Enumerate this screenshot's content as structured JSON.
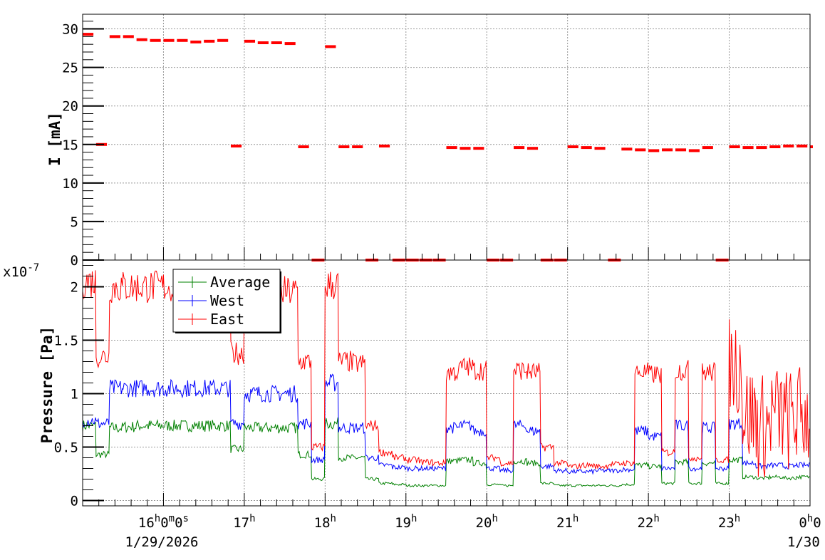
{
  "chart_data": [
    {
      "type": "scatter",
      "ylabel": "I [mA]",
      "ylim": [
        0,
        31.9
      ],
      "xlim": [
        "15:00",
        "24:00"
      ],
      "grid": true,
      "yticks": [
        "0",
        "5",
        "10",
        "15",
        "20",
        "25",
        "30"
      ],
      "color": "#ff0000",
      "x": [
        "15:00",
        "15:10",
        "15:20",
        "15:30",
        "15:40",
        "15:50",
        "16:00",
        "16:10",
        "16:20",
        "16:30",
        "16:40",
        "16:50",
        "17:00",
        "17:10",
        "17:20",
        "17:30",
        "17:40",
        "17:50",
        "18:00",
        "18:10",
        "18:20",
        "18:30",
        "18:40",
        "18:50",
        "19:00",
        "19:10",
        "19:20",
        "19:30",
        "19:40",
        "19:50",
        "20:00",
        "20:10",
        "20:20",
        "20:30",
        "20:40",
        "20:50",
        "21:00",
        "21:10",
        "21:20",
        "21:30",
        "21:40",
        "21:50",
        "22:00",
        "22:10",
        "22:20",
        "22:30",
        "22:40",
        "22:50",
        "23:00",
        "23:10",
        "23:20",
        "23:30",
        "23:40",
        "23:50",
        "24:00"
      ],
      "values": [
        29.3,
        15.0,
        29.0,
        29.0,
        28.6,
        28.5,
        28.5,
        28.5,
        28.3,
        28.4,
        28.5,
        14.8,
        28.4,
        28.2,
        28.2,
        28.1,
        14.7,
        0,
        27.7,
        14.7,
        14.7,
        0,
        14.8,
        0,
        0,
        0,
        0,
        14.6,
        14.5,
        14.5,
        0,
        0,
        14.6,
        14.5,
        0,
        0,
        14.7,
        14.6,
        14.5,
        0,
        14.4,
        14.3,
        14.2,
        14.3,
        14.3,
        14.2,
        14.6,
        0,
        14.7,
        14.6,
        14.6,
        14.7,
        14.8,
        14.8,
        14.7
      ]
    },
    {
      "type": "line",
      "ylabel": "Pressure [Pa]",
      "yexponent": "x10",
      "yexponent_power": "-7",
      "ylim": [
        -0.05,
        2.25
      ],
      "xlim": [
        "15:00",
        "24:00"
      ],
      "grid": true,
      "legend": "top-left",
      "yticks": [
        "0",
        "0.5",
        "1",
        "1.5",
        "2"
      ],
      "xticks": [
        {
          "main": "16",
          "sup1": "h",
          "mid": "0",
          "sup2": "m",
          "end": "0",
          "sup3": "s",
          "time": "16:00"
        },
        {
          "main": "17",
          "sup1": "h",
          "time": "17:00"
        },
        {
          "main": "18",
          "sup1": "h",
          "time": "18:00"
        },
        {
          "main": "19",
          "sup1": "h",
          "time": "19:00"
        },
        {
          "main": "20",
          "sup1": "h",
          "time": "20:00"
        },
        {
          "main": "21",
          "sup1": "h",
          "time": "21:00"
        },
        {
          "main": "22",
          "sup1": "h",
          "time": "22:00"
        },
        {
          "main": "23",
          "sup1": "h",
          "time": "23:00"
        },
        {
          "main": "0",
          "sup1": "h",
          "mid": "0",
          "time": "24:00"
        }
      ],
      "date_left": "1/29/2026",
      "date_right": "1/30",
      "x": [
        "15:00",
        "15:10",
        "15:20",
        "15:30",
        "15:40",
        "15:50",
        "16:00",
        "16:10",
        "16:20",
        "16:30",
        "16:40",
        "16:50",
        "17:00",
        "17:10",
        "17:20",
        "17:30",
        "17:40",
        "17:50",
        "18:00",
        "18:10",
        "18:20",
        "18:30",
        "18:40",
        "18:50",
        "19:00",
        "19:10",
        "19:20",
        "19:30",
        "19:40",
        "19:50",
        "20:00",
        "20:10",
        "20:20",
        "20:30",
        "20:40",
        "20:50",
        "21:00",
        "21:10",
        "21:20",
        "21:30",
        "21:40",
        "21:50",
        "22:00",
        "22:10",
        "22:20",
        "22:30",
        "22:40",
        "22:50",
        "23:00",
        "23:10",
        "23:20",
        "23:30",
        "23:40",
        "23:50",
        "24:00"
      ],
      "series": [
        {
          "name": "Average",
          "color": "#008000",
          "values": [
            0.7,
            0.43,
            0.68,
            0.69,
            0.7,
            0.7,
            0.7,
            0.7,
            0.7,
            0.7,
            0.7,
            0.48,
            0.68,
            0.68,
            0.68,
            0.68,
            0.43,
            0.2,
            0.72,
            0.4,
            0.4,
            0.2,
            0.16,
            0.15,
            0.14,
            0.14,
            0.14,
            0.37,
            0.38,
            0.35,
            0.15,
            0.14,
            0.37,
            0.35,
            0.16,
            0.14,
            0.14,
            0.14,
            0.14,
            0.14,
            0.15,
            0.33,
            0.32,
            0.16,
            0.36,
            0.16,
            0.35,
            0.16,
            0.38,
            0.22,
            0.21,
            0.22,
            0.21,
            0.22,
            0.2
          ]
        },
        {
          "name": "West",
          "color": "#0000ff",
          "values": [
            0.75,
            0.72,
            1.05,
            1.05,
            1.05,
            1.05,
            1.05,
            1.05,
            1.05,
            1.05,
            1.05,
            0.72,
            1.0,
            1.0,
            1.0,
            1.0,
            0.72,
            0.38,
            1.1,
            0.68,
            0.68,
            0.4,
            0.33,
            0.31,
            0.3,
            0.3,
            0.3,
            0.68,
            0.7,
            0.65,
            0.3,
            0.28,
            0.7,
            0.65,
            0.32,
            0.28,
            0.27,
            0.27,
            0.28,
            0.28,
            0.29,
            0.65,
            0.6,
            0.3,
            0.7,
            0.3,
            0.68,
            0.3,
            0.72,
            0.35,
            0.32,
            0.33,
            0.32,
            0.33,
            0.3
          ]
        },
        {
          "name": "East",
          "color": "#ff0000",
          "values": [
            2.05,
            1.35,
            2.0,
            2.0,
            2.0,
            2.0,
            2.0,
            2.01,
            2.0,
            2.0,
            2.0,
            1.38,
            1.95,
            1.95,
            1.95,
            1.95,
            1.3,
            0.5,
            2.02,
            1.3,
            1.28,
            0.7,
            0.45,
            0.4,
            0.38,
            0.36,
            0.35,
            1.2,
            1.25,
            1.22,
            0.4,
            0.35,
            1.22,
            1.2,
            0.5,
            0.35,
            0.32,
            0.33,
            0.32,
            0.34,
            0.35,
            1.2,
            1.18,
            0.45,
            1.22,
            0.4,
            1.2,
            0.38,
            1.28,
            0.8,
            0.7,
            0.8,
            0.75,
            0.8,
            0.7
          ]
        }
      ]
    }
  ]
}
